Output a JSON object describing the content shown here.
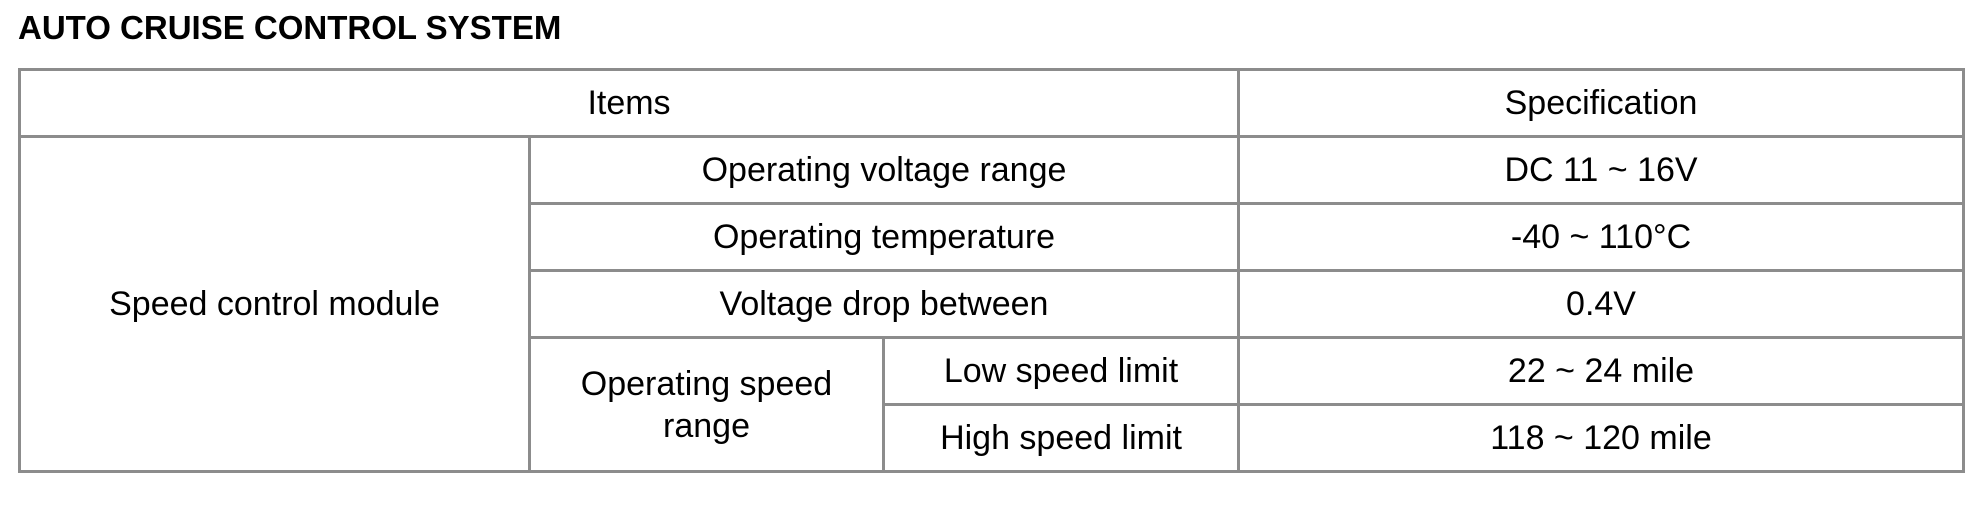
{
  "title": "AUTO CRUISE CONTROL SYSTEM",
  "table": {
    "header": [
      "Items",
      "Specification"
    ],
    "group": "Speed control module",
    "rows": [
      {
        "item": "Operating voltage range",
        "spec": "DC 11 ~ 16V"
      },
      {
        "item": "Operating temperature",
        "spec": "-40 ~ 110°C"
      },
      {
        "item": "Voltage drop between",
        "spec": "0.4V"
      }
    ],
    "subgroup": "Operating speed range",
    "subrows": [
      {
        "item": "Low speed limit",
        "spec": "22 ~ 24 mile"
      },
      {
        "item": "High speed limit",
        "spec": "118 ~ 120 mile"
      }
    ]
  }
}
